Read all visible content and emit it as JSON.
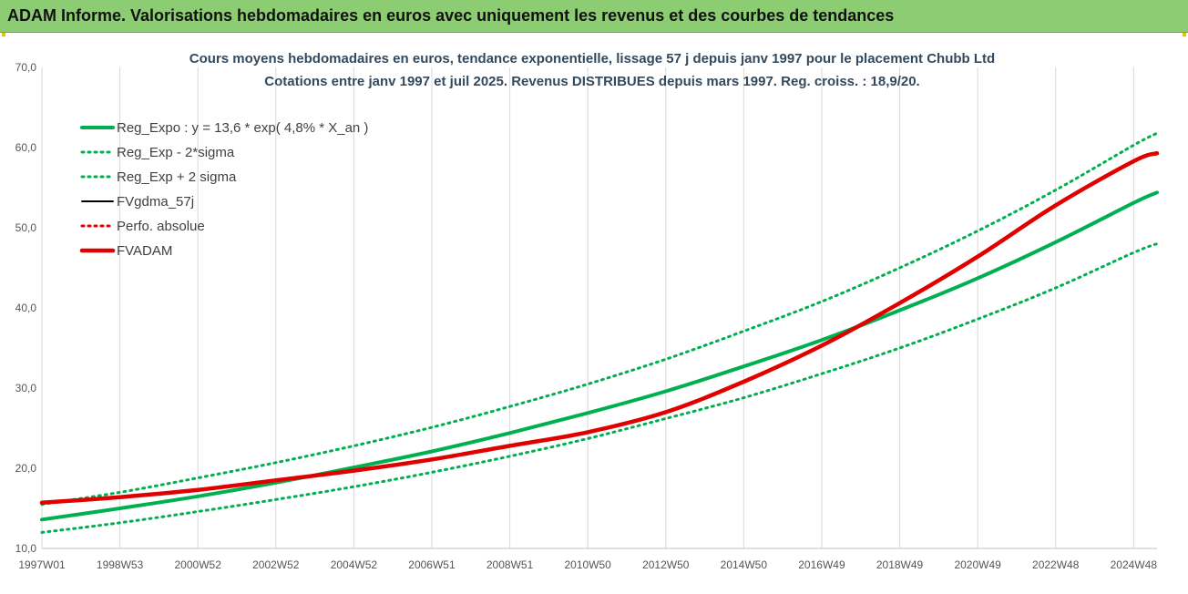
{
  "header": {
    "title": "ADAM Informe. Valorisations hebdomadaires en euros avec uniquement les revenus et des courbes de tendances"
  },
  "colors": {
    "header_bg": "#8ccd74",
    "green": "#00b050",
    "black": "#000000",
    "red": "#e00000",
    "grid": "#d9d9d9"
  },
  "chart_data": {
    "type": "line",
    "title_lines": [
      "Cours moyens hebdomadaires en euros, tendance exponentielle, lissage 57 j depuis janv 1997 pour le placement Chubb Ltd",
      "Cotations entre janv 1997 et juil 2025. Revenus DISTRIBUES depuis mars 1997. Reg. croiss. : 18,9/20."
    ],
    "ylim": [
      10,
      70
    ],
    "ytick_labels": [
      "10,0",
      "20,0",
      "30,0",
      "40,0",
      "50,0",
      "60,0",
      "70,0"
    ],
    "ytick_values": [
      10,
      20,
      30,
      40,
      50,
      60,
      70
    ],
    "x_range": [
      1997.0,
      2025.6
    ],
    "xtick_labels": [
      "1997W01",
      "1998W53",
      "2000W52",
      "2002W52",
      "2004W52",
      "2006W51",
      "2008W51",
      "2010W50",
      "2012W50",
      "2014W50",
      "2016W49",
      "2018W49",
      "2020W49",
      "2022W48",
      "2024W48"
    ],
    "xtick_values": [
      1997.0,
      1999.0,
      2001.0,
      2003.0,
      2005.0,
      2007.0,
      2009.0,
      2011.0,
      2013.0,
      2015.0,
      2017.0,
      2019.0,
      2021.0,
      2023.0,
      2025.0
    ],
    "x": [
      1997.0,
      1999.0,
      2001.0,
      2003.0,
      2005.0,
      2007.0,
      2009.0,
      2011.0,
      2013.0,
      2015.0,
      2017.0,
      2019.0,
      2021.0,
      2023.0,
      2025.0,
      2025.6
    ],
    "legend_placement": "top-left",
    "series": [
      {
        "name": "Reg_Expo : y = 13,6 * exp( 4,8% *  X_an )",
        "style": "solid",
        "color": "#00b050",
        "values": [
          13.6,
          15.0,
          16.5,
          18.2,
          20.1,
          22.1,
          24.4,
          26.9,
          29.6,
          32.7,
          36.0,
          39.7,
          43.7,
          48.2,
          53.1,
          54.4
        ]
      },
      {
        "name": "Reg_Exp - 2*sigma",
        "style": "dotted",
        "color": "#00b050",
        "values": [
          12.0,
          13.2,
          14.6,
          16.1,
          17.7,
          19.5,
          21.5,
          23.7,
          26.2,
          28.8,
          31.8,
          35.0,
          38.6,
          42.5,
          46.9,
          48.0
        ]
      },
      {
        "name": "Reg_Exp + 2 sigma",
        "style": "dotted",
        "color": "#00b050",
        "values": [
          15.5,
          17.0,
          18.8,
          20.7,
          22.8,
          25.1,
          27.7,
          30.5,
          33.6,
          37.1,
          40.8,
          45.0,
          49.6,
          54.7,
          60.3,
          61.8
        ]
      },
      {
        "name": "FVgdma_57j",
        "style": "solid-thin",
        "color": "#000000",
        "values": [
          15.7,
          16.4,
          17.3,
          18.5,
          19.7,
          21.1,
          22.8,
          24.5,
          27.0,
          30.8,
          35.3,
          40.6,
          46.4,
          52.8,
          58.3,
          59.3
        ]
      },
      {
        "name": "Perfo. absolue",
        "style": "dotted",
        "color": "#e00000",
        "values": [
          15.7,
          16.4,
          17.3,
          18.5,
          19.7,
          21.1,
          22.8,
          24.5,
          27.0,
          30.8,
          35.3,
          40.6,
          46.4,
          52.8,
          58.3,
          59.3
        ]
      },
      {
        "name": "FVADAM",
        "style": "solid-thick",
        "color": "#e00000",
        "values": [
          15.7,
          16.4,
          17.3,
          18.5,
          19.7,
          21.1,
          22.8,
          24.5,
          27.0,
          30.8,
          35.3,
          40.6,
          46.4,
          52.8,
          58.3,
          59.3
        ]
      }
    ]
  }
}
